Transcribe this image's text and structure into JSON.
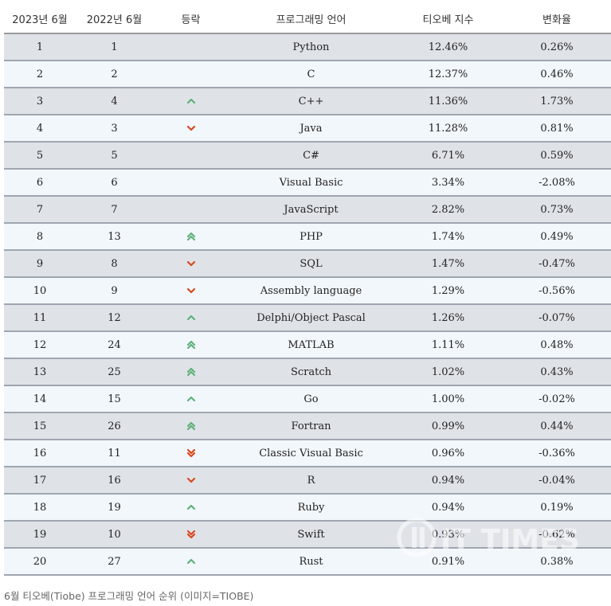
{
  "table": {
    "headers": [
      "2023년 6월",
      "2022년 6월",
      "등락",
      "프로그래밍 언어",
      "티오베 지수",
      "변화율"
    ],
    "rows": [
      {
        "rank2023": "1",
        "rank2022": "1",
        "trend": "none",
        "language": "Python",
        "index": "12.46%",
        "change": "0.26%"
      },
      {
        "rank2023": "2",
        "rank2022": "2",
        "trend": "none",
        "language": "C",
        "index": "12.37%",
        "change": "0.46%"
      },
      {
        "rank2023": "3",
        "rank2022": "4",
        "trend": "up",
        "language": "C++",
        "index": "11.36%",
        "change": "1.73%"
      },
      {
        "rank2023": "4",
        "rank2022": "3",
        "trend": "down",
        "language": "Java",
        "index": "11.28%",
        "change": "0.81%"
      },
      {
        "rank2023": "5",
        "rank2022": "5",
        "trend": "none",
        "language": "C#",
        "index": "6.71%",
        "change": "0.59%"
      },
      {
        "rank2023": "6",
        "rank2022": "6",
        "trend": "none",
        "language": "Visual Basic",
        "index": "3.34%",
        "change": "-2.08%"
      },
      {
        "rank2023": "7",
        "rank2022": "7",
        "trend": "none",
        "language": "JavaScript",
        "index": "2.82%",
        "change": "0.73%"
      },
      {
        "rank2023": "8",
        "rank2022": "13",
        "trend": "up2",
        "language": "PHP",
        "index": "1.74%",
        "change": "0.49%"
      },
      {
        "rank2023": "9",
        "rank2022": "8",
        "trend": "down",
        "language": "SQL",
        "index": "1.47%",
        "change": "-0.47%"
      },
      {
        "rank2023": "10",
        "rank2022": "9",
        "trend": "down",
        "language": "Assembly language",
        "index": "1.29%",
        "change": "-0.56%"
      },
      {
        "rank2023": "11",
        "rank2022": "12",
        "trend": "up",
        "language": "Delphi/Object Pascal",
        "index": "1.26%",
        "change": "-0.07%"
      },
      {
        "rank2023": "12",
        "rank2022": "24",
        "trend": "up2",
        "language": "MATLAB",
        "index": "1.11%",
        "change": "0.48%"
      },
      {
        "rank2023": "13",
        "rank2022": "25",
        "trend": "up2",
        "language": "Scratch",
        "index": "1.02%",
        "change": "0.43%"
      },
      {
        "rank2023": "14",
        "rank2022": "15",
        "trend": "up",
        "language": "Go",
        "index": "1.00%",
        "change": "-0.02%"
      },
      {
        "rank2023": "15",
        "rank2022": "26",
        "trend": "up2",
        "language": "Fortran",
        "index": "0.99%",
        "change": "0.44%"
      },
      {
        "rank2023": "16",
        "rank2022": "11",
        "trend": "down2",
        "language": "Classic Visual Basic",
        "index": "0.96%",
        "change": "-0.36%"
      },
      {
        "rank2023": "17",
        "rank2022": "16",
        "trend": "down",
        "language": "R",
        "index": "0.94%",
        "change": "-0.04%"
      },
      {
        "rank2023": "18",
        "rank2022": "19",
        "trend": "up",
        "language": "Ruby",
        "index": "0.94%",
        "change": "0.19%"
      },
      {
        "rank2023": "19",
        "rank2022": "10",
        "trend": "down2",
        "language": "Swift",
        "index": "0.93%",
        "change": "-0.62%"
      },
      {
        "rank2023": "20",
        "rank2022": "27",
        "trend": "up",
        "language": "Rust",
        "index": "0.91%",
        "change": "0.38%"
      }
    ]
  },
  "colors": {
    "up": "#5fb07a",
    "down": "#d9481c",
    "row_odd": "#dfe3e8",
    "row_even": "#f2f7fc"
  },
  "caption": "6월 티오베(Tiobe) 프로그래밍 언어 순위 (이미지=TIOBE)",
  "watermark": "IT TIMES"
}
